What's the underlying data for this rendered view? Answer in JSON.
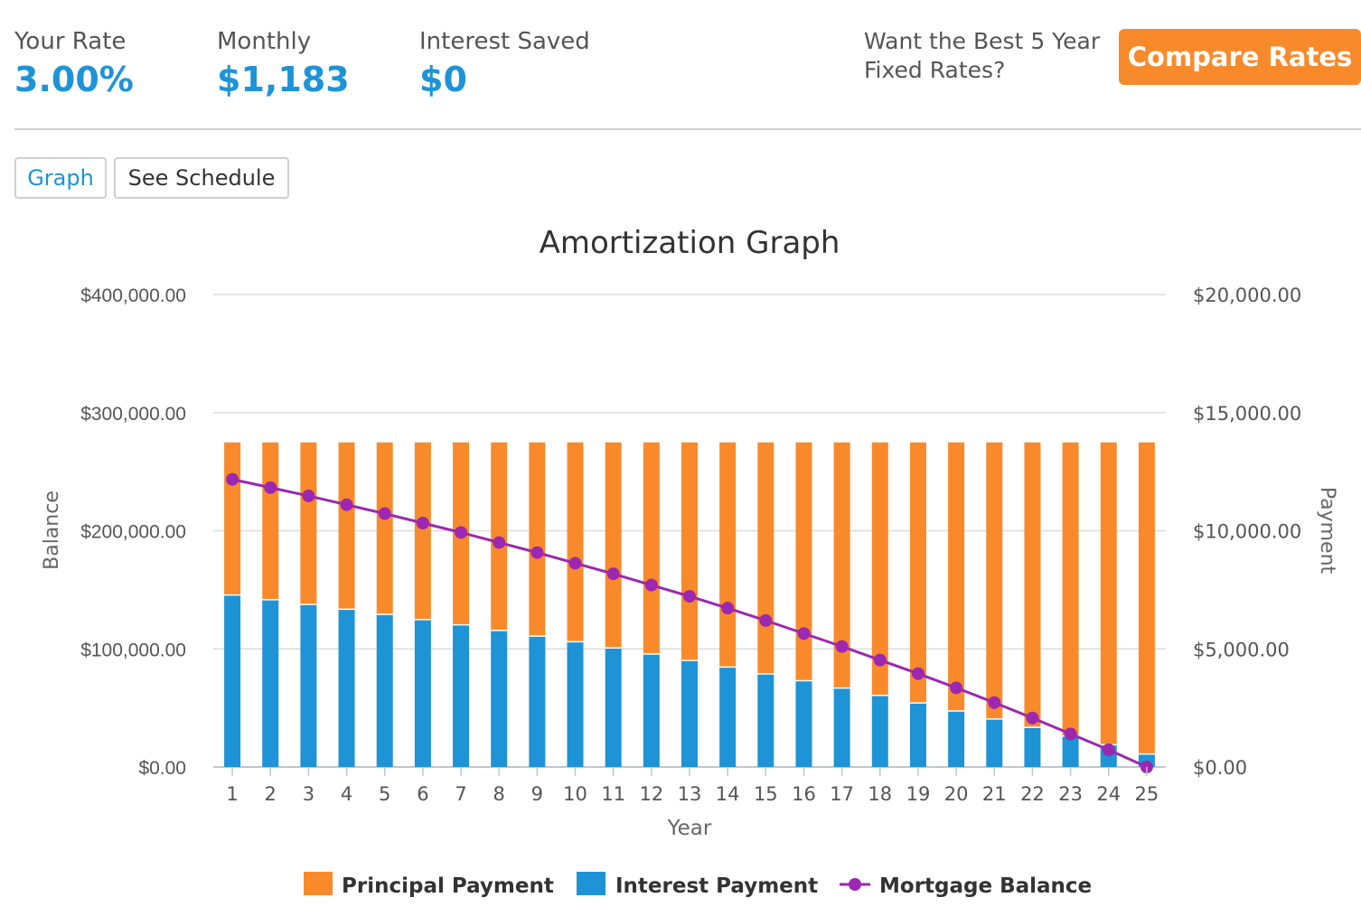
{
  "stats": {
    "rate_label": "Your Rate",
    "rate_value": "3.00%",
    "monthly_label": "Monthly",
    "monthly_value": "$1,183",
    "saved_label": "Interest Saved",
    "saved_value": "$0"
  },
  "promo": {
    "text_line1": "Want the Best 5 Year",
    "text_line2": "Fixed Rates?",
    "button_label": "Compare Rates"
  },
  "tabs": {
    "graph_label": "Graph",
    "schedule_label": "See Schedule"
  },
  "colors": {
    "principal": "#f98a2b",
    "interest": "#1e93d6",
    "balance": "#9c27b0",
    "accent": "#1e93d6",
    "button": "#f98a2b"
  },
  "chart_data": {
    "type": "bar",
    "title": "Amortization Graph",
    "xlabel": "Year",
    "ylabel_left": "Balance",
    "ylabel_right": "Payment",
    "categories": [
      "1",
      "2",
      "3",
      "4",
      "5",
      "6",
      "7",
      "8",
      "9",
      "10",
      "11",
      "12",
      "13",
      "14",
      "15",
      "16",
      "17",
      "18",
      "19",
      "20",
      "21",
      "22",
      "23",
      "24",
      "25"
    ],
    "left_axis": {
      "min": 0,
      "max": 400000,
      "ticks": [
        0,
        100000,
        200000,
        300000,
        400000
      ],
      "tick_labels": [
        "$0.00",
        "$100,000.00",
        "$200,000.00",
        "$300,000.00",
        "$400,000.00"
      ]
    },
    "right_axis": {
      "min": 0,
      "max": 20000,
      "ticks": [
        0,
        5000,
        10000,
        15000,
        20000
      ],
      "tick_labels": [
        "$0.00",
        "$5,000.00",
        "$10,000.00",
        "$15,000.00",
        "$20,000.00"
      ]
    },
    "grid": true,
    "legend_position": "bottom",
    "series": [
      {
        "name": "Principal Payment",
        "type": "stacked-bar",
        "axis": "right",
        "values": [
          6460,
          6660,
          6860,
          7060,
          7280,
          7500,
          7720,
          7960,
          8200,
          8440,
          8700,
          8960,
          9230,
          9510,
          9800,
          10090,
          10400,
          10710,
          11030,
          11370,
          11710,
          12060,
          12430,
          12800,
          13190
        ]
      },
      {
        "name": "Interest Payment",
        "type": "stacked-bar",
        "axis": "right",
        "values": [
          7280,
          7080,
          6880,
          6680,
          6460,
          6240,
          6020,
          5780,
          5540,
          5300,
          5040,
          4780,
          4510,
          4230,
          3940,
          3650,
          3340,
          3030,
          2710,
          2370,
          2030,
          1680,
          1310,
          940,
          550
        ]
      },
      {
        "name": "Mortgage Balance",
        "type": "line",
        "axis": "left",
        "values": [
          243500,
          236500,
          229500,
          222000,
          214500,
          206500,
          198500,
          190000,
          181500,
          172500,
          163500,
          154000,
          144500,
          134500,
          124000,
          113000,
          102000,
          90500,
          79000,
          67000,
          54500,
          41500,
          28000,
          14500,
          0
        ]
      }
    ]
  }
}
